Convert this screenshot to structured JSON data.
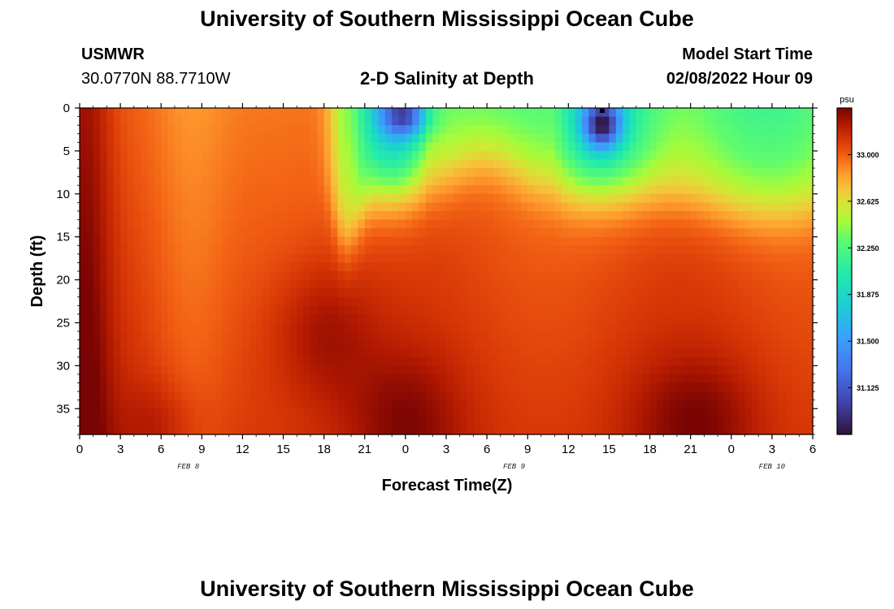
{
  "page": {
    "title_top": "University of Southern Mississippi Ocean Cube",
    "title_bottom": "University of Southern Mississippi Ocean Cube",
    "station": "USMWR",
    "coords": "30.0770N  88.7710W",
    "subtitle": "2-D Salinity at Depth",
    "model_start_label": "Model Start Time",
    "model_start_value": "02/08/2022 Hour 09"
  },
  "chart_data": {
    "type": "heatmap",
    "title": "2-D Salinity at Depth",
    "xlabel": "Forecast Time(Z)",
    "ylabel": "Depth (ft)",
    "x_ticks": [
      "0",
      "3",
      "6",
      "9",
      "12",
      "15",
      "18",
      "21",
      "0",
      "3",
      "6",
      "9",
      "12",
      "15",
      "18",
      "21",
      "0",
      "3",
      "6"
    ],
    "date_labels": [
      {
        "text": "FEB 8",
        "at_hour": 8
      },
      {
        "text": "FEB 9",
        "at_hour": 32
      },
      {
        "text": "FEB 10",
        "at_hour": 51
      }
    ],
    "xlim_hours": [
      0,
      54
    ],
    "y_ticks": [
      0,
      5,
      10,
      15,
      20,
      25,
      30,
      35
    ],
    "ylim_ft": [
      0,
      38
    ],
    "y_inverted": true,
    "colorbar": {
      "unit": "psu",
      "min": 30.75,
      "max": 33.375,
      "ticks": [
        "33.000",
        "32.625",
        "32.250",
        "31.875",
        "31.500",
        "31.125"
      ]
    },
    "fresh_features": [
      {
        "name": "halocline-tongue",
        "note": "fresher surface water intruding down to ~17 ft near hour 19-20"
      },
      {
        "name": "fresh-lens-1",
        "center_hour": 24,
        "depth_ft": 1,
        "min_psu": 31.1
      },
      {
        "name": "fresh-lens-2",
        "center_hour": 38.5,
        "depth_ft": 2,
        "min_psu": 30.8
      }
    ]
  }
}
